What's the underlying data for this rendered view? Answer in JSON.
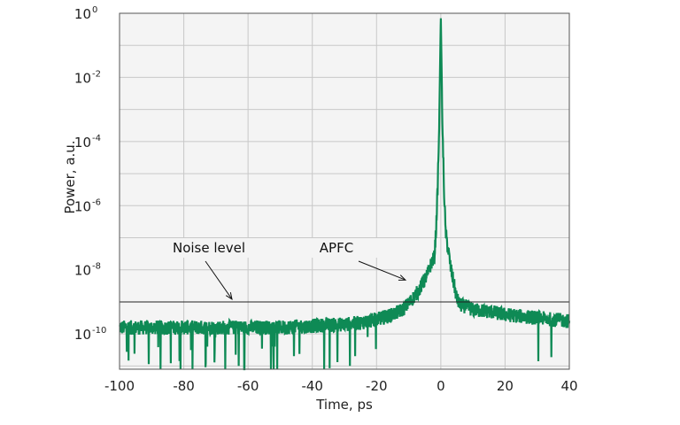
{
  "chart_data": {
    "type": "line",
    "xlabel": "Time, ps",
    "ylabel": "Power, a.u.",
    "xlim": [
      -100,
      40
    ],
    "ylim_log10": [
      -11.1,
      0
    ],
    "yscale": "log",
    "xticks": [
      -100,
      -80,
      -60,
      -40,
      -20,
      0,
      20,
      40
    ],
    "xtick_labels": [
      "-100",
      "-80",
      "-60",
      "-40",
      "-20",
      "0",
      "20",
      "40"
    ],
    "yticks": [
      {
        "base": "10",
        "exp": "-10",
        "log10": -10
      },
      {
        "base": "10",
        "exp": "-8",
        "log10": -8
      },
      {
        "base": "10",
        "exp": "-6",
        "log10": -6
      },
      {
        "base": "10",
        "exp": "-4",
        "log10": -4
      },
      {
        "base": "10",
        "exp": "-2",
        "log10": -2
      },
      {
        "base": "10",
        "exp": "0",
        "log10": 0
      }
    ],
    "grid": true,
    "series": [
      {
        "color": "#0e8a55",
        "x": [
          -100,
          -90,
          -80,
          -70,
          -60,
          -50,
          -40,
          -30,
          -25,
          -20,
          -15,
          -12,
          -10,
          -8,
          -6,
          -4,
          -3,
          -2,
          -1.5,
          -1,
          -0.5,
          0,
          0.5,
          1,
          1.5,
          2,
          2.5,
          3,
          4,
          5,
          6,
          8,
          10,
          15,
          20,
          25,
          30,
          35,
          40
        ],
        "y_log10": [
          -9.8,
          -9.8,
          -9.8,
          -9.8,
          -9.8,
          -9.8,
          -9.75,
          -9.7,
          -9.65,
          -9.55,
          -9.4,
          -9.25,
          -9.05,
          -8.8,
          -8.5,
          -8.1,
          -7.8,
          -7.6,
          -6.8,
          -5.5,
          -3.5,
          0,
          -3.5,
          -5.5,
          -6.8,
          -7.2,
          -7.5,
          -7.9,
          -8.4,
          -8.9,
          -9.1,
          -9.15,
          -9.25,
          -9.3,
          -9.4,
          -9.45,
          -9.5,
          -9.55,
          -9.6
        ]
      }
    ],
    "noise_level_log10": -9.0,
    "annotations": [
      {
        "text": "Noise level",
        "arrow_to": {
          "x": -65,
          "y_log10": -9.0
        }
      },
      {
        "text": "APFC",
        "arrow_to": {
          "x": -11,
          "y_log10": -8.4
        }
      }
    ]
  }
}
